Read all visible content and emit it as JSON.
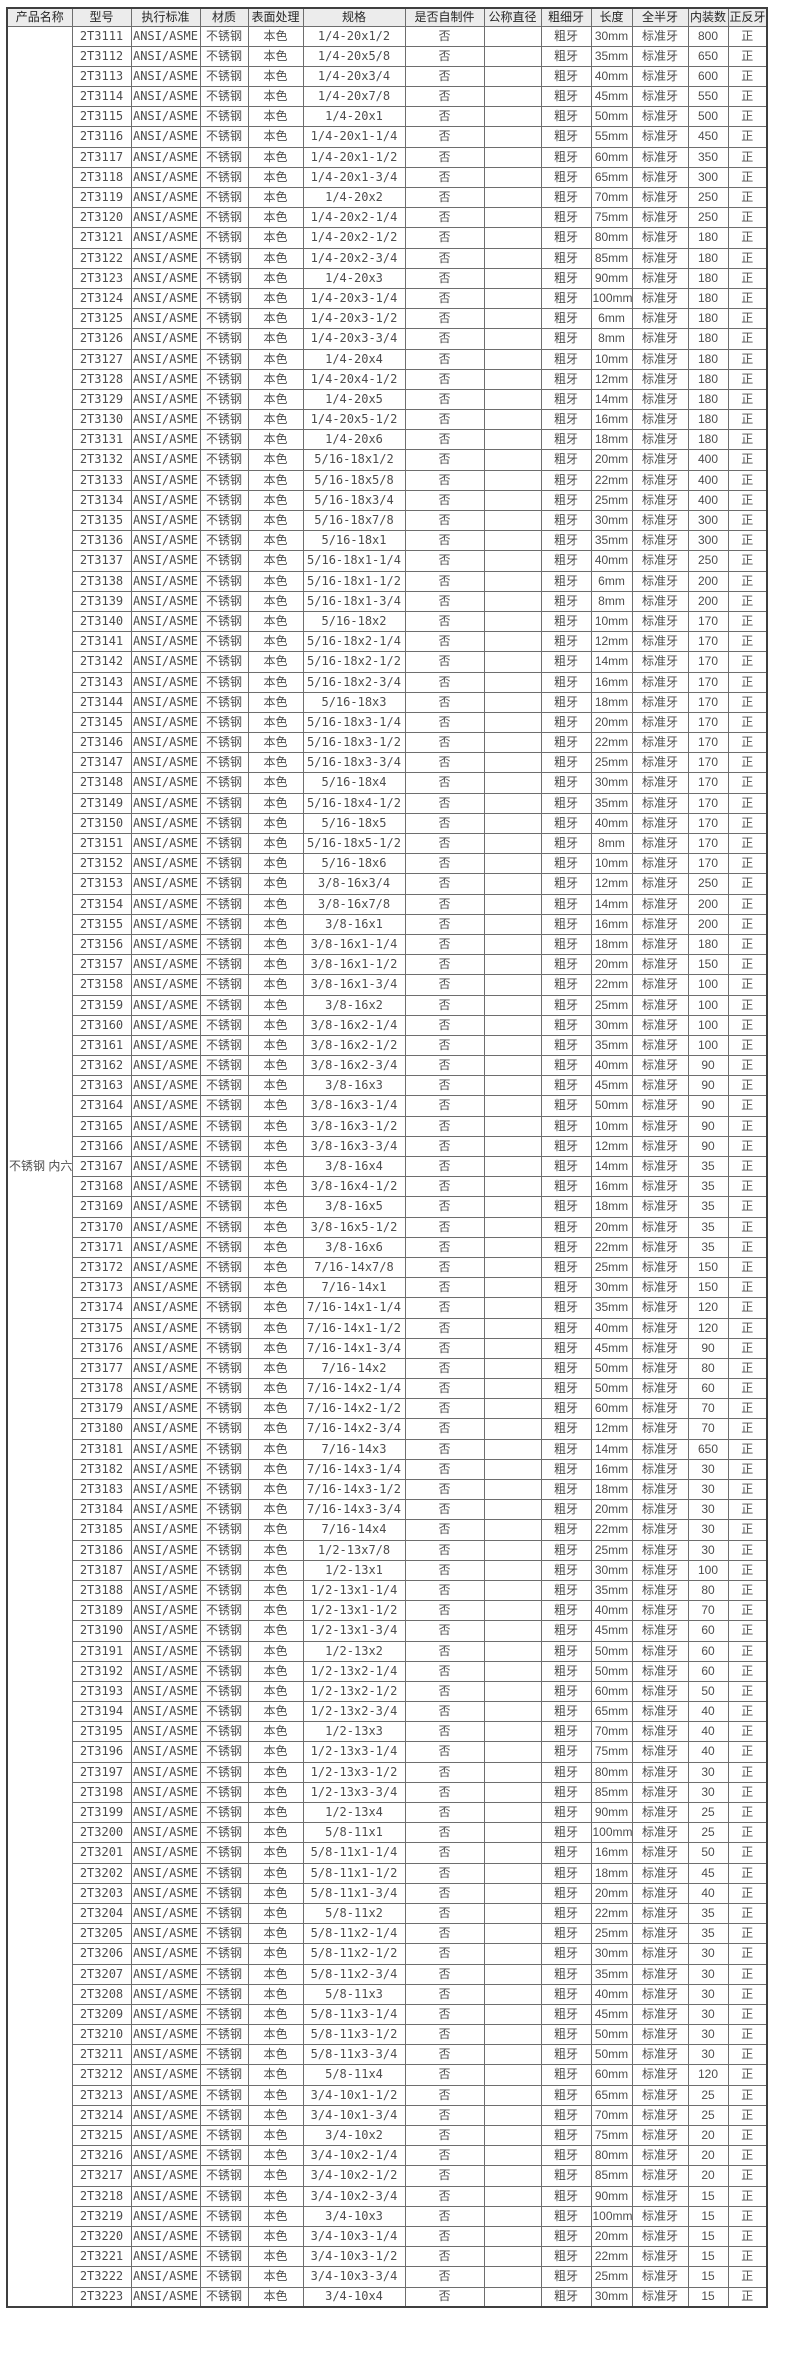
{
  "table": {
    "product_name": "不锈钢 内六角螺丝",
    "headers": [
      "产品名称",
      "型号",
      "执行标准",
      "材质",
      "表面处理",
      "规格",
      "是否自制件",
      "公称直径",
      "粗细牙",
      "长度",
      "全半牙",
      "内装数",
      "正反牙"
    ],
    "common": {
      "standard": "ANSI/ASME",
      "material": "不锈钢",
      "finish": "本色",
      "self_made": "否",
      "nominal_diameter": "",
      "thread_pitch": "粗牙",
      "thread_type": "标准牙",
      "thread_direction": "正"
    },
    "rows": [
      {
        "model": "2T3111",
        "spec": "1/4-20x1/2",
        "length": "30mm",
        "qty": "800"
      },
      {
        "model": "2T3112",
        "spec": "1/4-20x5/8",
        "length": "35mm",
        "qty": "650"
      },
      {
        "model": "2T3113",
        "spec": "1/4-20x3/4",
        "length": "40mm",
        "qty": "600"
      },
      {
        "model": "2T3114",
        "spec": "1/4-20x7/8",
        "length": "45mm",
        "qty": "550"
      },
      {
        "model": "2T3115",
        "spec": "1/4-20x1",
        "length": "50mm",
        "qty": "500"
      },
      {
        "model": "2T3116",
        "spec": "1/4-20x1-1/4",
        "length": "55mm",
        "qty": "450"
      },
      {
        "model": "2T3117",
        "spec": "1/4-20x1-1/2",
        "length": "60mm",
        "qty": "350"
      },
      {
        "model": "2T3118",
        "spec": "1/4-20x1-3/4",
        "length": "65mm",
        "qty": "300"
      },
      {
        "model": "2T3119",
        "spec": "1/4-20x2",
        "length": "70mm",
        "qty": "250"
      },
      {
        "model": "2T3120",
        "spec": "1/4-20x2-1/4",
        "length": "75mm",
        "qty": "250"
      },
      {
        "model": "2T3121",
        "spec": "1/4-20x2-1/2",
        "length": "80mm",
        "qty": "180"
      },
      {
        "model": "2T3122",
        "spec": "1/4-20x2-3/4",
        "length": "85mm",
        "qty": "180"
      },
      {
        "model": "2T3123",
        "spec": "1/4-20x3",
        "length": "90mm",
        "qty": "180"
      },
      {
        "model": "2T3124",
        "spec": "1/4-20x3-1/4",
        "length": "100mm",
        "qty": "180"
      },
      {
        "model": "2T3125",
        "spec": "1/4-20x3-1/2",
        "length": "6mm",
        "qty": "180"
      },
      {
        "model": "2T3126",
        "spec": "1/4-20x3-3/4",
        "length": "8mm",
        "qty": "180"
      },
      {
        "model": "2T3127",
        "spec": "1/4-20x4",
        "length": "10mm",
        "qty": "180"
      },
      {
        "model": "2T3128",
        "spec": "1/4-20x4-1/2",
        "length": "12mm",
        "qty": "180"
      },
      {
        "model": "2T3129",
        "spec": "1/4-20x5",
        "length": "14mm",
        "qty": "180"
      },
      {
        "model": "2T3130",
        "spec": "1/4-20x5-1/2",
        "length": "16mm",
        "qty": "180"
      },
      {
        "model": "2T3131",
        "spec": "1/4-20x6",
        "length": "18mm",
        "qty": "180"
      },
      {
        "model": "2T3132",
        "spec": "5/16-18x1/2",
        "length": "20mm",
        "qty": "400"
      },
      {
        "model": "2T3133",
        "spec": "5/16-18x5/8",
        "length": "22mm",
        "qty": "400"
      },
      {
        "model": "2T3134",
        "spec": "5/16-18x3/4",
        "length": "25mm",
        "qty": "400"
      },
      {
        "model": "2T3135",
        "spec": "5/16-18x7/8",
        "length": "30mm",
        "qty": "300"
      },
      {
        "model": "2T3136",
        "spec": "5/16-18x1",
        "length": "35mm",
        "qty": "300"
      },
      {
        "model": "2T3137",
        "spec": "5/16-18x1-1/4",
        "length": "40mm",
        "qty": "250"
      },
      {
        "model": "2T3138",
        "spec": "5/16-18x1-1/2",
        "length": "6mm",
        "qty": "200"
      },
      {
        "model": "2T3139",
        "spec": "5/16-18x1-3/4",
        "length": "8mm",
        "qty": "200"
      },
      {
        "model": "2T3140",
        "spec": "5/16-18x2",
        "length": "10mm",
        "qty": "170"
      },
      {
        "model": "2T3141",
        "spec": "5/16-18x2-1/4",
        "length": "12mm",
        "qty": "170"
      },
      {
        "model": "2T3142",
        "spec": "5/16-18x2-1/2",
        "length": "14mm",
        "qty": "170"
      },
      {
        "model": "2T3143",
        "spec": "5/16-18x2-3/4",
        "length": "16mm",
        "qty": "170"
      },
      {
        "model": "2T3144",
        "spec": "5/16-18x3",
        "length": "18mm",
        "qty": "170"
      },
      {
        "model": "2T3145",
        "spec": "5/16-18x3-1/4",
        "length": "20mm",
        "qty": "170"
      },
      {
        "model": "2T3146",
        "spec": "5/16-18x3-1/2",
        "length": "22mm",
        "qty": "170"
      },
      {
        "model": "2T3147",
        "spec": "5/16-18x3-3/4",
        "length": "25mm",
        "qty": "170"
      },
      {
        "model": "2T3148",
        "spec": "5/16-18x4",
        "length": "30mm",
        "qty": "170"
      },
      {
        "model": "2T3149",
        "spec": "5/16-18x4-1/2",
        "length": "35mm",
        "qty": "170"
      },
      {
        "model": "2T3150",
        "spec": "5/16-18x5",
        "length": "40mm",
        "qty": "170"
      },
      {
        "model": "2T3151",
        "spec": "5/16-18x5-1/2",
        "length": "8mm",
        "qty": "170"
      },
      {
        "model": "2T3152",
        "spec": "5/16-18x6",
        "length": "10mm",
        "qty": "170"
      },
      {
        "model": "2T3153",
        "spec": "3/8-16x3/4",
        "length": "12mm",
        "qty": "250"
      },
      {
        "model": "2T3154",
        "spec": "3/8-16x7/8",
        "length": "14mm",
        "qty": "200"
      },
      {
        "model": "2T3155",
        "spec": "3/8-16x1",
        "length": "16mm",
        "qty": "200"
      },
      {
        "model": "2T3156",
        "spec": "3/8-16x1-1/4",
        "length": "18mm",
        "qty": "180"
      },
      {
        "model": "2T3157",
        "spec": "3/8-16x1-1/2",
        "length": "20mm",
        "qty": "150"
      },
      {
        "model": "2T3158",
        "spec": "3/8-16x1-3/4",
        "length": "22mm",
        "qty": "100"
      },
      {
        "model": "2T3159",
        "spec": "3/8-16x2",
        "length": "25mm",
        "qty": "100"
      },
      {
        "model": "2T3160",
        "spec": "3/8-16x2-1/4",
        "length": "30mm",
        "qty": "100"
      },
      {
        "model": "2T3161",
        "spec": "3/8-16x2-1/2",
        "length": "35mm",
        "qty": "100"
      },
      {
        "model": "2T3162",
        "spec": "3/8-16x2-3/4",
        "length": "40mm",
        "qty": "90"
      },
      {
        "model": "2T3163",
        "spec": "3/8-16x3",
        "length": "45mm",
        "qty": "90"
      },
      {
        "model": "2T3164",
        "spec": "3/8-16x3-1/4",
        "length": "50mm",
        "qty": "90"
      },
      {
        "model": "2T3165",
        "spec": "3/8-16x3-1/2",
        "length": "10mm",
        "qty": "90"
      },
      {
        "model": "2T3166",
        "spec": "3/8-16x3-3/4",
        "length": "12mm",
        "qty": "90"
      },
      {
        "model": "2T3167",
        "spec": "3/8-16x4",
        "length": "14mm",
        "qty": "35"
      },
      {
        "model": "2T3168",
        "spec": "3/8-16x4-1/2",
        "length": "16mm",
        "qty": "35"
      },
      {
        "model": "2T3169",
        "spec": "3/8-16x5",
        "length": "18mm",
        "qty": "35"
      },
      {
        "model": "2T3170",
        "spec": "3/8-16x5-1/2",
        "length": "20mm",
        "qty": "35"
      },
      {
        "model": "2T3171",
        "spec": "3/8-16x6",
        "length": "22mm",
        "qty": "35"
      },
      {
        "model": "2T3172",
        "spec": "7/16-14x7/8",
        "length": "25mm",
        "qty": "150"
      },
      {
        "model": "2T3173",
        "spec": "7/16-14x1",
        "length": "30mm",
        "qty": "150"
      },
      {
        "model": "2T3174",
        "spec": "7/16-14x1-1/4",
        "length": "35mm",
        "qty": "120"
      },
      {
        "model": "2T3175",
        "spec": "7/16-14x1-1/2",
        "length": "40mm",
        "qty": "120"
      },
      {
        "model": "2T3176",
        "spec": "7/16-14x1-3/4",
        "length": "45mm",
        "qty": "90"
      },
      {
        "model": "2T3177",
        "spec": "7/16-14x2",
        "length": "50mm",
        "qty": "80"
      },
      {
        "model": "2T3178",
        "spec": "7/16-14x2-1/4",
        "length": "50mm",
        "qty": "60"
      },
      {
        "model": "2T3179",
        "spec": "7/16-14x2-1/2",
        "length": "60mm",
        "qty": "70"
      },
      {
        "model": "2T3180",
        "spec": "7/16-14x2-3/4",
        "length": "12mm",
        "qty": "70"
      },
      {
        "model": "2T3181",
        "spec": "7/16-14x3",
        "length": "14mm",
        "qty": "650"
      },
      {
        "model": "2T3182",
        "spec": "7/16-14x3-1/4",
        "length": "16mm",
        "qty": "30"
      },
      {
        "model": "2T3183",
        "spec": "7/16-14x3-1/2",
        "length": "18mm",
        "qty": "30"
      },
      {
        "model": "2T3184",
        "spec": "7/16-14x3-3/4",
        "length": "20mm",
        "qty": "30"
      },
      {
        "model": "2T3185",
        "spec": "7/16-14x4",
        "length": "22mm",
        "qty": "30"
      },
      {
        "model": "2T3186",
        "spec": "1/2-13x7/8",
        "length": "25mm",
        "qty": "30"
      },
      {
        "model": "2T3187",
        "spec": "1/2-13x1",
        "length": "30mm",
        "qty": "100"
      },
      {
        "model": "2T3188",
        "spec": "1/2-13x1-1/4",
        "length": "35mm",
        "qty": "80"
      },
      {
        "model": "2T3189",
        "spec": "1/2-13x1-1/2",
        "length": "40mm",
        "qty": "70"
      },
      {
        "model": "2T3190",
        "spec": "1/2-13x1-3/4",
        "length": "45mm",
        "qty": "60"
      },
      {
        "model": "2T3191",
        "spec": "1/2-13x2",
        "length": "50mm",
        "qty": "60"
      },
      {
        "model": "2T3192",
        "spec": "1/2-13x2-1/4",
        "length": "50mm",
        "qty": "60"
      },
      {
        "model": "2T3193",
        "spec": "1/2-13x2-1/2",
        "length": "60mm",
        "qty": "50"
      },
      {
        "model": "2T3194",
        "spec": "1/2-13x2-3/4",
        "length": "65mm",
        "qty": "40"
      },
      {
        "model": "2T3195",
        "spec": "1/2-13x3",
        "length": "70mm",
        "qty": "40"
      },
      {
        "model": "2T3196",
        "spec": "1/2-13x3-1/4",
        "length": "75mm",
        "qty": "40"
      },
      {
        "model": "2T3197",
        "spec": "1/2-13x3-1/2",
        "length": "80mm",
        "qty": "30"
      },
      {
        "model": "2T3198",
        "spec": "1/2-13x3-3/4",
        "length": "85mm",
        "qty": "30"
      },
      {
        "model": "2T3199",
        "spec": "1/2-13x4",
        "length": "90mm",
        "qty": "25"
      },
      {
        "model": "2T3200",
        "spec": "5/8-11x1",
        "length": "100mm",
        "qty": "25"
      },
      {
        "model": "2T3201",
        "spec": "5/8-11x1-1/4",
        "length": "16mm",
        "qty": "50"
      },
      {
        "model": "2T3202",
        "spec": "5/8-11x1-1/2",
        "length": "18mm",
        "qty": "45"
      },
      {
        "model": "2T3203",
        "spec": "5/8-11x1-3/4",
        "length": "20mm",
        "qty": "40"
      },
      {
        "model": "2T3204",
        "spec": "5/8-11x2",
        "length": "22mm",
        "qty": "35"
      },
      {
        "model": "2T3205",
        "spec": "5/8-11x2-1/4",
        "length": "25mm",
        "qty": "35"
      },
      {
        "model": "2T3206",
        "spec": "5/8-11x2-1/2",
        "length": "30mm",
        "qty": "30"
      },
      {
        "model": "2T3207",
        "spec": "5/8-11x2-3/4",
        "length": "35mm",
        "qty": "30"
      },
      {
        "model": "2T3208",
        "spec": "5/8-11x3",
        "length": "40mm",
        "qty": "30"
      },
      {
        "model": "2T3209",
        "spec": "5/8-11x3-1/4",
        "length": "45mm",
        "qty": "30"
      },
      {
        "model": "2T3210",
        "spec": "5/8-11x3-1/2",
        "length": "50mm",
        "qty": "30"
      },
      {
        "model": "2T3211",
        "spec": "5/8-11x3-3/4",
        "length": "50mm",
        "qty": "30"
      },
      {
        "model": "2T3212",
        "spec": "5/8-11x4",
        "length": "60mm",
        "qty": "120"
      },
      {
        "model": "2T3213",
        "spec": "3/4-10x1-1/2",
        "length": "65mm",
        "qty": "25"
      },
      {
        "model": "2T3214",
        "spec": "3/4-10x1-3/4",
        "length": "70mm",
        "qty": "25"
      },
      {
        "model": "2T3215",
        "spec": "3/4-10x2",
        "length": "75mm",
        "qty": "20"
      },
      {
        "model": "2T3216",
        "spec": "3/4-10x2-1/4",
        "length": "80mm",
        "qty": "20"
      },
      {
        "model": "2T3217",
        "spec": "3/4-10x2-1/2",
        "length": "85mm",
        "qty": "20"
      },
      {
        "model": "2T3218",
        "spec": "3/4-10x2-3/4",
        "length": "90mm",
        "qty": "15"
      },
      {
        "model": "2T3219",
        "spec": "3/4-10x3",
        "length": "100mm",
        "qty": "15"
      },
      {
        "model": "2T3220",
        "spec": "3/4-10x3-1/4",
        "length": "20mm",
        "qty": "15"
      },
      {
        "model": "2T3221",
        "spec": "3/4-10x3-1/2",
        "length": "22mm",
        "qty": "15"
      },
      {
        "model": "2T3222",
        "spec": "3/4-10x3-3/4",
        "length": "25mm",
        "qty": "15"
      },
      {
        "model": "2T3223",
        "spec": "3/4-10x4",
        "length": "30mm",
        "qty": "15"
      }
    ]
  }
}
